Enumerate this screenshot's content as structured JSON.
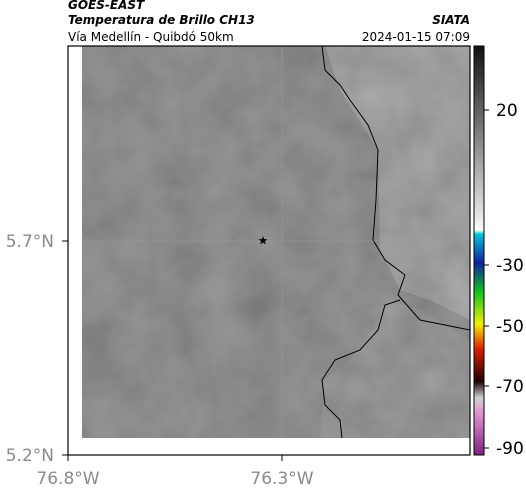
{
  "header": {
    "title": "GOES-EAST",
    "subtitle": "Temperatura de Brillo CH13",
    "source": "SIATA",
    "route": "Vía Medellín - Quibdó 50km",
    "timestamp": "2024-01-15 07:09"
  },
  "map": {
    "lat_labels": [
      "5.7°N",
      "5.2°N"
    ],
    "lon_labels": [
      "76.8°W",
      "76.3°W"
    ]
  },
  "colorbar": {
    "ticks": [
      20,
      -30,
      -50,
      -70,
      -90
    ]
  }
}
